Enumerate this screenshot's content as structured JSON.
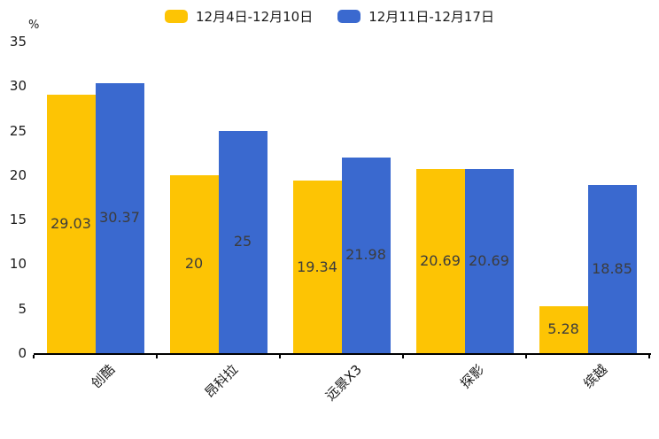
{
  "chart_data": {
    "type": "bar",
    "title": "",
    "ylabel": "%",
    "categories": [
      "创酷",
      "昂科拉",
      "远景X3",
      "探影",
      "缤越"
    ],
    "series": [
      {
        "name": "12月4日-12月10日",
        "color": "#FDC404",
        "values": [
          29.03,
          20,
          19.34,
          20.69,
          5.28
        ]
      },
      {
        "name": "12月11日-12月17日",
        "color": "#3A69CF",
        "values": [
          30.37,
          25,
          21.98,
          20.69,
          18.85
        ]
      }
    ],
    "yticks": [
      0,
      5,
      10,
      15,
      20,
      25,
      30,
      35
    ],
    "ylim": [
      0,
      35
    ],
    "grid": false,
    "legend_position": "top",
    "value_labels": true,
    "value_label_color": "#3c3c3c"
  }
}
